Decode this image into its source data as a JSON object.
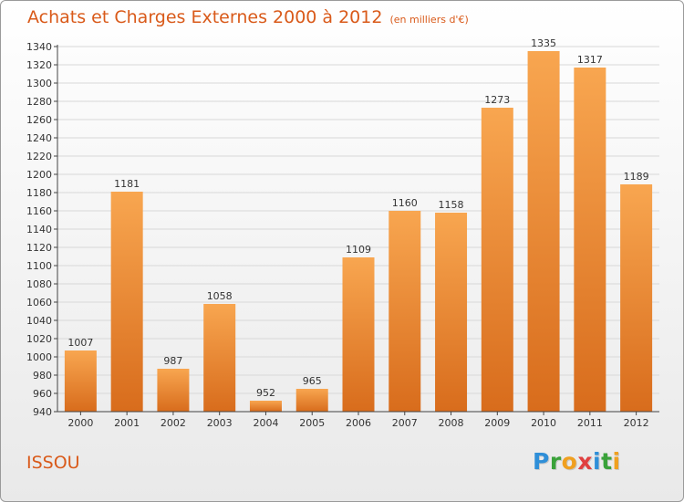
{
  "header": {
    "title": "Achats et Charges Externes 2000 à 2012",
    "subtitle": "(en milliers d'€)"
  },
  "footer": {
    "place": "ISSOU",
    "logo_letters": [
      "P",
      "r",
      "o",
      "x",
      "i",
      "t",
      "i"
    ],
    "logo_colors": [
      "#2f8fd8",
      "#3aa23a",
      "#f0a020",
      "#e04040",
      "#2f8fd8",
      "#3aa23a",
      "#f0a020"
    ]
  },
  "colors": {
    "bar_top": "#f8a650",
    "bar_bottom": "#d86c1c",
    "axis": "#444444",
    "grid": "#d8d8d8"
  },
  "chart_data": {
    "type": "bar",
    "title": "Achats et Charges Externes 2000 à 2012",
    "subtitle": "(en milliers d'€)",
    "categories": [
      "2000",
      "2001",
      "2002",
      "2003",
      "2004",
      "2005",
      "2006",
      "2007",
      "2008",
      "2009",
      "2010",
      "2011",
      "2012"
    ],
    "values": [
      1007,
      1181,
      987,
      1058,
      952,
      965,
      1109,
      1160,
      1158,
      1273,
      1335,
      1317,
      1189
    ],
    "ylim": [
      940,
      1340
    ],
    "yticks": [
      940,
      960,
      980,
      1000,
      1020,
      1040,
      1060,
      1080,
      1100,
      1120,
      1140,
      1160,
      1180,
      1200,
      1220,
      1240,
      1260,
      1280,
      1300,
      1320,
      1340
    ],
    "grid": true,
    "legend": "none"
  }
}
